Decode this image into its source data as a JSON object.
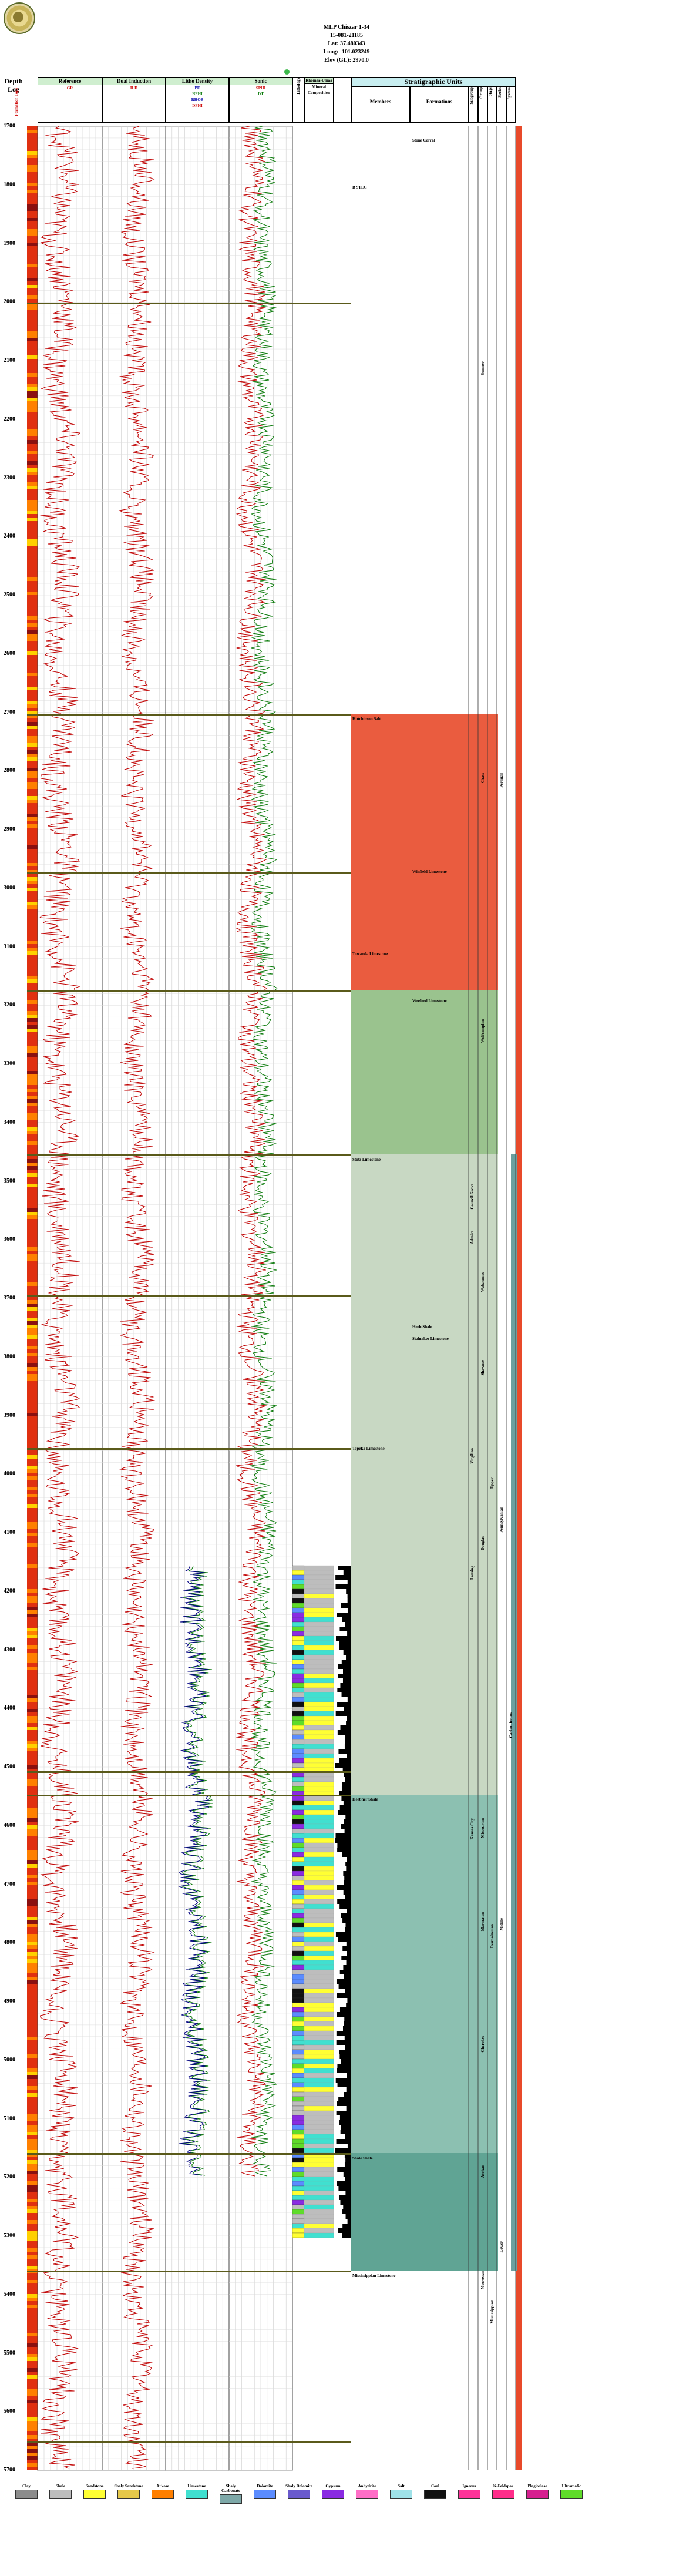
{
  "header": {
    "lines": [
      "MLP Chiszar 1-34",
      "15-081-21185",
      "Lat: 37.480343",
      "Long: -101.023249",
      "Elev (GL): 2970.0"
    ]
  },
  "depth_track": {
    "title": "Depth Log",
    "units_label": "Formation Tops",
    "labels": [
      "1700",
      "1800",
      "1900",
      "2000",
      "2100",
      "2200",
      "2300",
      "2400",
      "2500",
      "2600",
      "2700",
      "2800",
      "2900",
      "3000",
      "3100",
      "3200",
      "3300",
      "3400",
      "3500",
      "3600",
      "3700",
      "3800",
      "3900",
      "4000",
      "4100",
      "4200",
      "4300",
      "4400",
      "4500",
      "4600",
      "4700",
      "4800",
      "4900",
      "5000",
      "5100",
      "5200",
      "5300",
      "5400",
      "5500",
      "5600",
      "5700"
    ]
  },
  "tracks": [
    {
      "title": "Reference",
      "curves": [
        {
          "name": "GR",
          "color": "#c00000"
        }
      ],
      "scale_left": "0",
      "scale_right": "150 B"
    },
    {
      "title": "Dual Induction",
      "curves": [
        {
          "name": "ILD",
          "color": "#c00000"
        }
      ],
      "scale_left": "0.2",
      "scale_right": "2000 4"
    },
    {
      "title": "Litho Density",
      "curves": [
        {
          "name": "PE",
          "color": "#000080"
        },
        {
          "name": "NPHI",
          "color": "#0a7a0a"
        },
        {
          "name": "RHOB",
          "color": "#000080"
        },
        {
          "name": "DPHI",
          "color": "#c00000"
        }
      ],
      "scale_left": "0",
      "scale_right": "10"
    },
    {
      "title": "Sonic",
      "curves": [
        {
          "name": "SPHI",
          "color": "#c00000"
        },
        {
          "name": "DT",
          "color": "#0a7a0a"
        }
      ],
      "scale_left": "0",
      "scale_right": "40"
    },
    {
      "title": "Lithology",
      "curves": [],
      "scale_left": "",
      "scale_right": ""
    },
    {
      "title": "Rhomaa-Umaa",
      "curves": [],
      "scale_left": "",
      "scale_right": ""
    },
    {
      "title": "Mineral Composition",
      "curves": [],
      "scale_left": "",
      "scale_right": ""
    }
  ],
  "stratigraphy": {
    "title": "Stratigraphic Units",
    "columns": [
      "Members",
      "Formations",
      "Subgroup",
      "Group",
      "Stage",
      "Series",
      "System"
    ],
    "formations": [
      {
        "name": "Stone Corral"
      },
      {
        "name": "B STEC"
      },
      {
        "name": "Hutchinson Salt"
      },
      {
        "name": "Winfield Limestone"
      },
      {
        "name": "Towanda Limestone"
      },
      {
        "name": "Wreford Limestone"
      },
      {
        "name": "Stotz Limestone"
      },
      {
        "name": "Heeb Shale"
      },
      {
        "name": "Stalnaker Limestone"
      },
      {
        "name": "Topeka Limestone"
      },
      {
        "name": "Heebner Shale"
      },
      {
        "name": "Shale Shale"
      },
      {
        "name": "Mississippian Limestone"
      }
    ],
    "series_labels": [
      "Sumner",
      "Chase",
      "Wolfcampian",
      "Council Grove",
      "Admire",
      "Wabaunsee",
      "Shawnee",
      "Virgilian",
      "Douglas",
      "Lansing",
      "Kansas City",
      "Missourian",
      "Marmaton",
      "Desmoinesian",
      "Cherokee",
      "Atokan",
      "Morrowan",
      "Mississippian",
      "Permian",
      "Pennsylvanian",
      "Carboniferous",
      "Upper",
      "Middle",
      "Lower"
    ]
  },
  "legend": [
    {
      "name": "Clay",
      "color": "#8c8c8c"
    },
    {
      "name": "Shale",
      "color": "#bdbdbd"
    },
    {
      "name": "Sandstone",
      "color": "#ffff33"
    },
    {
      "name": "Shaly Sandstone",
      "color": "#e6c84a"
    },
    {
      "name": "Arkose",
      "color": "#ff7f00"
    },
    {
      "name": "Limestone",
      "color": "#40e0d0"
    },
    {
      "name": "Shaly Carbonate",
      "color": "#7ea8a8"
    },
    {
      "name": "Dolomite",
      "color": "#5b8cff"
    },
    {
      "name": "Shaly Dolomite",
      "color": "#6a5acd"
    },
    {
      "name": "Gypsum",
      "color": "#8a2be2"
    },
    {
      "name": "Anhydrite",
      "color": "#ff6ec7"
    },
    {
      "name": "Salt",
      "color": "#9fe2e8"
    },
    {
      "name": "Coal",
      "color": "#111111"
    },
    {
      "name": "Igneous",
      "color": "#ff3399"
    },
    {
      "name": "K-Feldspar",
      "color": "#ff2d8a"
    },
    {
      "name": "Plagioclase",
      "color": "#d51f8f"
    },
    {
      "name": "Ultramafic",
      "color": "#5fdc2a"
    }
  ]
}
